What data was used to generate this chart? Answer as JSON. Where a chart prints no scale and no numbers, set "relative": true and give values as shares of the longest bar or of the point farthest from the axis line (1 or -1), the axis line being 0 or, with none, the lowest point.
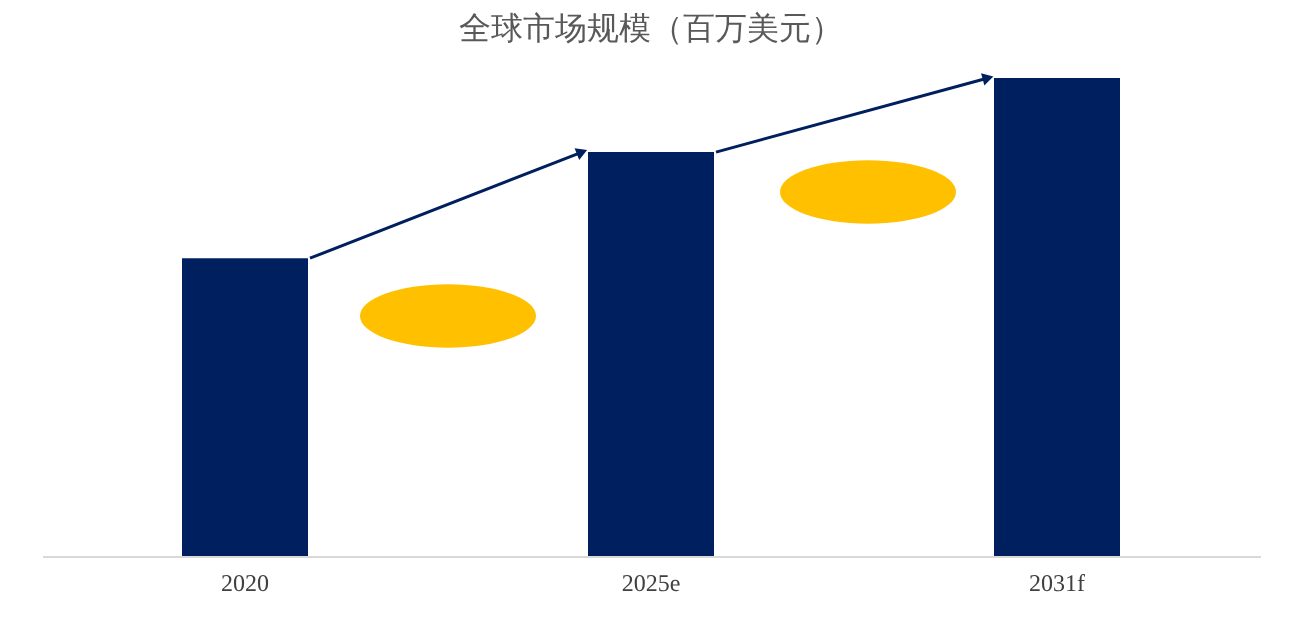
{
  "chart_data": {
    "type": "bar",
    "title": "全球市场规模（百万美元）",
    "categories": [
      "2020",
      "2025e",
      "2031f"
    ],
    "values": [
      0.623,
      0.845,
      1
    ],
    "color": "#001f5f",
    "relative": true,
    "grid": false
  }
}
